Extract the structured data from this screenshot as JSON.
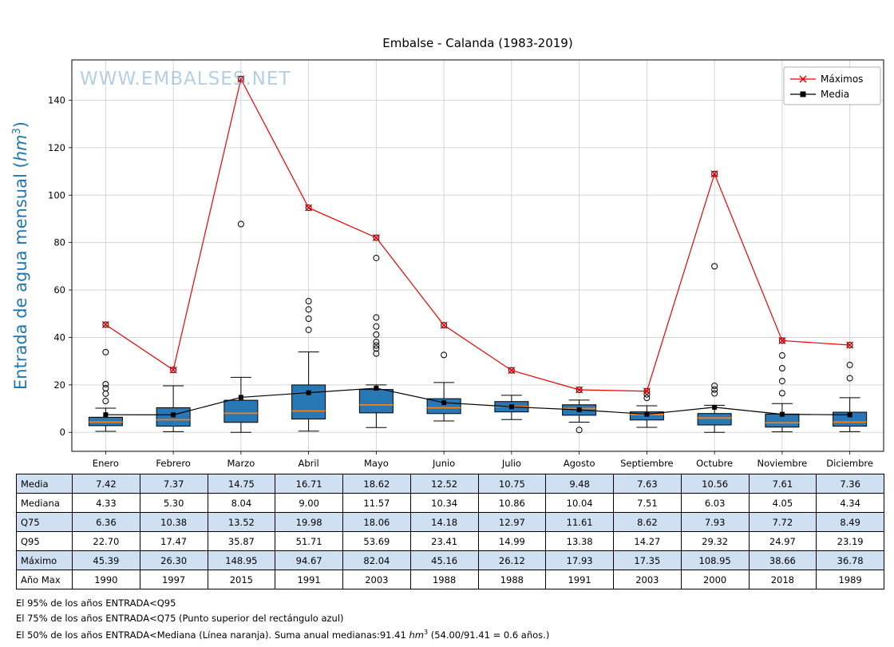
{
  "title": "Embalse - Calanda (1983-2019)",
  "watermark": "WWW.EMBALSES.NET",
  "y_axis_label": {
    "prefix": "Entrada de agua mensual (",
    "unit": "hm",
    "sup": "3",
    "suffix": ")"
  },
  "colors": {
    "box_fill": "#2878b5",
    "median": "#ff7f0e",
    "max_line": "#ee0000",
    "mean_line": "#000000",
    "axis_label": "#1f77b4",
    "grid": "#cccccc",
    "table_row_alt": "#cfe0f3",
    "watermark": "#79a8cc"
  },
  "legend": {
    "items": [
      {
        "label": "Máximos",
        "marker": "x",
        "color": "#ee0000"
      },
      {
        "label": "Media",
        "marker": "square",
        "color": "#000000"
      }
    ]
  },
  "chart_data": {
    "type": "box",
    "title": "Embalse - Calanda (1983-2019)",
    "ylabel": "Entrada de agua mensual (hm3)",
    "categories": [
      "Enero",
      "Febrero",
      "Marzo",
      "Abril",
      "Mayo",
      "Junio",
      "Julio",
      "Agosto",
      "Septiembre",
      "Octubre",
      "Noviembre",
      "Diciembre"
    ],
    "ylim": [
      -8,
      157
    ],
    "yticks": [
      0,
      20,
      40,
      60,
      80,
      100,
      120,
      140
    ],
    "grid": true,
    "legend_position": "upper right",
    "boxes": [
      {
        "q1": 2.8,
        "median": 4.33,
        "q3": 6.36,
        "whislo": 0.4,
        "whishi": 10.2,
        "fliers": [
          13.2,
          16.3,
          18.6,
          20.3,
          33.8,
          45.39
        ]
      },
      {
        "q1": 2.6,
        "median": 5.3,
        "q3": 10.38,
        "whislo": 0.3,
        "whishi": 19.6,
        "fliers": [
          26.3
        ]
      },
      {
        "q1": 4.2,
        "median": 8.04,
        "q3": 13.52,
        "whislo": 0.0,
        "whishi": 23.2,
        "fliers": [
          87.8,
          148.95
        ]
      },
      {
        "q1": 5.6,
        "median": 9.0,
        "q3": 19.98,
        "whislo": 0.5,
        "whishi": 33.9,
        "fliers": [
          43.2,
          47.9,
          51.8,
          55.3,
          94.67
        ]
      },
      {
        "q1": 8.2,
        "median": 11.57,
        "q3": 18.06,
        "whislo": 2.0,
        "whishi": 20.0,
        "fliers": [
          33.2,
          35.3,
          36.6,
          38.1,
          41.2,
          44.6,
          48.4,
          73.5,
          82.04
        ]
      },
      {
        "q1": 7.9,
        "median": 10.34,
        "q3": 14.18,
        "whislo": 4.8,
        "whishi": 21.0,
        "fliers": [
          32.6,
          45.16
        ]
      },
      {
        "q1": 8.6,
        "median": 10.86,
        "q3": 12.97,
        "whislo": 5.4,
        "whishi": 15.6,
        "fliers": [
          26.12
        ]
      },
      {
        "q1": 7.2,
        "median": 10.04,
        "q3": 11.61,
        "whislo": 4.3,
        "whishi": 13.6,
        "fliers": [
          1.0,
          17.93
        ]
      },
      {
        "q1": 5.2,
        "median": 7.51,
        "q3": 8.62,
        "whislo": 2.1,
        "whishi": 11.2,
        "fliers": [
          14.5,
          16.0,
          17.35
        ]
      },
      {
        "q1": 3.1,
        "median": 6.03,
        "q3": 7.93,
        "whislo": 0.0,
        "whishi": 11.4,
        "fliers": [
          16.4,
          18.0,
          19.6,
          70.0,
          108.95
        ]
      },
      {
        "q1": 2.2,
        "median": 4.05,
        "q3": 7.72,
        "whislo": 0.2,
        "whishi": 12.1,
        "fliers": [
          16.5,
          21.6,
          27.0,
          32.4,
          38.66
        ]
      },
      {
        "q1": 2.6,
        "median": 4.34,
        "q3": 8.49,
        "whislo": 0.3,
        "whishi": 14.6,
        "fliers": [
          22.8,
          28.4,
          36.78
        ]
      }
    ],
    "series": [
      {
        "name": "Máximos",
        "values": [
          45.39,
          26.3,
          148.95,
          94.67,
          82.04,
          45.16,
          26.12,
          17.93,
          17.35,
          108.95,
          38.66,
          36.78
        ]
      },
      {
        "name": "Media",
        "values": [
          7.42,
          7.37,
          14.75,
          16.71,
          18.62,
          12.52,
          10.75,
          9.48,
          7.63,
          10.56,
          7.61,
          7.36
        ]
      }
    ]
  },
  "table": {
    "row_labels": [
      "Media",
      "Mediana",
      "Q75",
      "Q95",
      "Máximo",
      "Año Max"
    ],
    "rows": [
      [
        "7.42",
        "7.37",
        "14.75",
        "16.71",
        "18.62",
        "12.52",
        "10.75",
        "9.48",
        "7.63",
        "10.56",
        "7.61",
        "7.36"
      ],
      [
        "4.33",
        "5.30",
        "8.04",
        "9.00",
        "11.57",
        "10.34",
        "10.86",
        "10.04",
        "7.51",
        "6.03",
        "4.05",
        "4.34"
      ],
      [
        "6.36",
        "10.38",
        "13.52",
        "19.98",
        "18.06",
        "14.18",
        "12.97",
        "11.61",
        "8.62",
        "7.93",
        "7.72",
        "8.49"
      ],
      [
        "22.70",
        "17.47",
        "35.87",
        "51.71",
        "53.69",
        "23.41",
        "14.99",
        "13.38",
        "14.27",
        "29.32",
        "24.97",
        "23.19"
      ],
      [
        "45.39",
        "26.30",
        "148.95",
        "94.67",
        "82.04",
        "45.16",
        "26.12",
        "17.93",
        "17.35",
        "108.95",
        "38.66",
        "36.78"
      ],
      [
        "1990",
        "1997",
        "2015",
        "1991",
        "2003",
        "1988",
        "1988",
        "1991",
        "2003",
        "2000",
        "2018",
        "1989"
      ]
    ]
  },
  "footnotes": {
    "line1": "El 95% de los años ENTRADA<Q95",
    "line2": "El 75% de los años ENTRADA<Q75 (Punto superior del rectángulo azul)",
    "line3_prefix": "El 50% de los años ENTRADA<Mediana (Línea naranja). Suma anual medianas:91.41 ",
    "line3_unit": "hm",
    "line3_sup": "3",
    "line3_suffix": " (54.00/91.41 = 0.6 años.)"
  }
}
